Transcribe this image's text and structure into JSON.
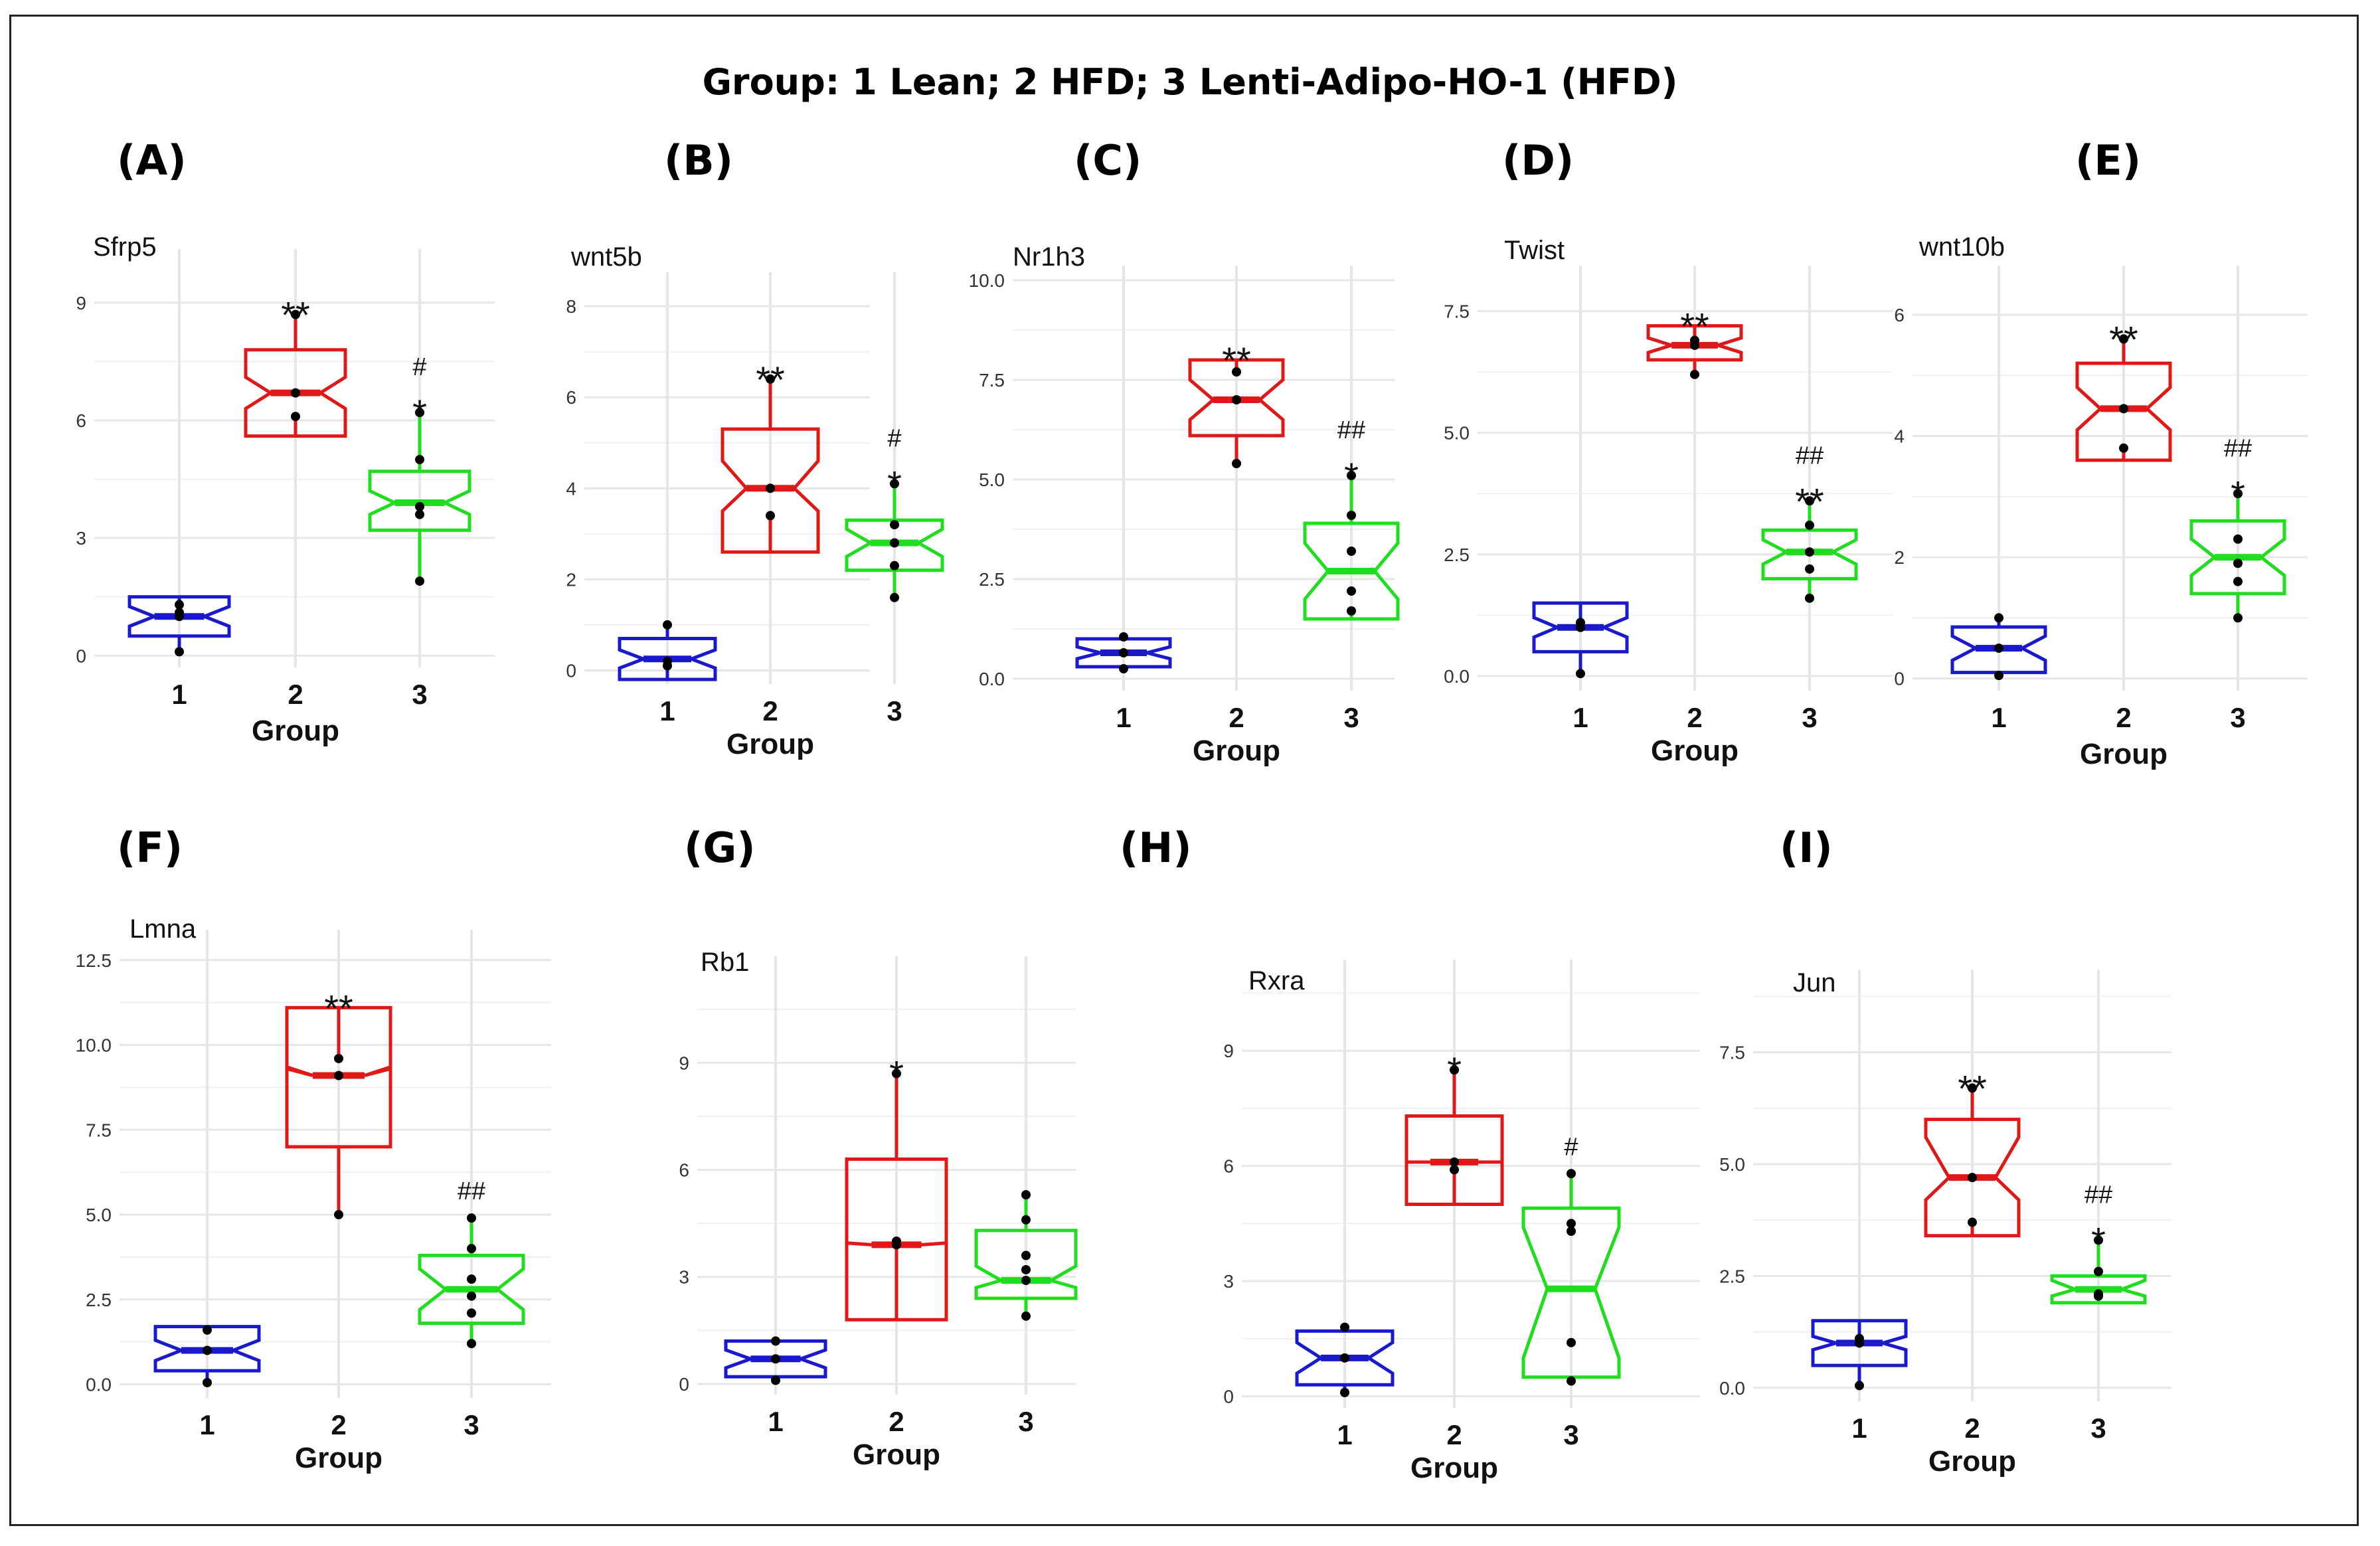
{
  "title": "Group: 1 Lean; 2 HFD; 3 Lenti-Adipo-HO-1 (HFD)",
  "colors": {
    "g1": "#1a1acc",
    "g2": "#e01818",
    "g3": "#20dd20",
    "grid": "#e6e6e6",
    "point": "#000000"
  },
  "chart_data": [
    {
      "type": "box",
      "panel": "(A)",
      "title": "Sfrp5",
      "xlabel": "Group",
      "categories": [
        "1",
        "2",
        "3"
      ],
      "ylim": [
        -0.3,
        10.2
      ],
      "yticks": [
        0,
        3,
        6,
        9
      ],
      "ytick_labels": [
        "0",
        "3",
        "6",
        "9"
      ],
      "boxes": [
        {
          "group": "1",
          "q1": 0.5,
          "median": 1.0,
          "q3": 1.5,
          "notch_lo": 0.75,
          "notch_hi": 1.25,
          "whisker_lo": 0.1,
          "whisker_hi": 1.3,
          "points": [
            0.1,
            1.0,
            1.1,
            1.3
          ]
        },
        {
          "group": "2",
          "q1": 5.6,
          "median": 6.7,
          "q3": 7.8,
          "notch_lo": 6.3,
          "notch_hi": 7.1,
          "whisker_lo": 6.1,
          "whisker_hi": 8.7,
          "points": [
            6.1,
            6.7,
            8.7
          ]
        },
        {
          "group": "3",
          "q1": 3.2,
          "median": 3.9,
          "q3": 4.7,
          "notch_lo": 3.6,
          "notch_hi": 4.2,
          "whisker_lo": 1.9,
          "whisker_hi": 6.2,
          "points": [
            1.9,
            3.6,
            3.8,
            5.0,
            6.2
          ]
        }
      ],
      "annotations": [
        {
          "group": "2",
          "text": "**"
        },
        {
          "group": "3",
          "text": "*"
        },
        {
          "group": "3",
          "text": "#"
        }
      ]
    },
    {
      "type": "box",
      "panel": "(B)",
      "title": "wnt5b",
      "xlabel": "Group",
      "categories": [
        "1",
        "2",
        "3"
      ],
      "ylim": [
        -0.3,
        8.6
      ],
      "yticks": [
        0,
        2,
        4,
        6,
        8
      ],
      "ytick_labels": [
        "0",
        "2",
        "4",
        "6",
        "8"
      ],
      "boxes": [
        {
          "group": "1",
          "q1": -0.2,
          "median": 0.25,
          "q3": 0.7,
          "notch_lo": 0.05,
          "notch_hi": 0.45,
          "whisker_lo": 0.1,
          "whisker_hi": 1.0,
          "points": [
            0.1,
            0.2,
            1.0
          ]
        },
        {
          "group": "2",
          "q1": 2.6,
          "median": 4.0,
          "q3": 5.3,
          "notch_lo": 3.5,
          "notch_hi": 4.6,
          "whisker_lo": 3.4,
          "whisker_hi": 6.4,
          "points": [
            3.4,
            4.0,
            6.4
          ]
        },
        {
          "group": "3",
          "q1": 2.2,
          "median": 2.8,
          "q3": 3.3,
          "notch_lo": 2.5,
          "notch_hi": 3.1,
          "whisker_lo": 1.6,
          "whisker_hi": 4.1,
          "points": [
            1.6,
            2.3,
            2.8,
            3.2,
            4.1
          ]
        }
      ],
      "annotations": [
        {
          "group": "2",
          "text": "**"
        },
        {
          "group": "3",
          "text": "*"
        },
        {
          "group": "3",
          "text": "#"
        }
      ]
    },
    {
      "type": "box",
      "panel": "(C)",
      "title": "Nr1h3",
      "xlabel": "Group",
      "categories": [
        "1",
        "2",
        "3"
      ],
      "ylim": [
        -0.3,
        10.2
      ],
      "yticks": [
        0,
        2.5,
        5,
        7.5,
        10
      ],
      "ytick_labels": [
        "0.0",
        "2.5",
        "5.0",
        "7.5",
        "10.0"
      ],
      "boxes": [
        {
          "group": "1",
          "q1": 0.3,
          "median": 0.65,
          "q3": 1.0,
          "notch_lo": 0.5,
          "notch_hi": 0.8,
          "whisker_lo": 0.25,
          "whisker_hi": 1.05,
          "points": [
            0.25,
            0.65,
            1.05
          ]
        },
        {
          "group": "2",
          "q1": 6.1,
          "median": 7.0,
          "q3": 8.0,
          "notch_lo": 6.5,
          "notch_hi": 7.5,
          "whisker_lo": 5.4,
          "whisker_hi": 7.7,
          "points": [
            5.4,
            7.0,
            7.7
          ]
        },
        {
          "group": "3",
          "q1": 1.5,
          "median": 2.7,
          "q3": 3.9,
          "notch_lo": 2.0,
          "notch_hi": 3.4,
          "whisker_lo": 1.7,
          "whisker_hi": 5.1,
          "points": [
            1.7,
            2.2,
            3.2,
            4.1,
            5.1
          ]
        }
      ],
      "annotations": [
        {
          "group": "2",
          "text": "**"
        },
        {
          "group": "3",
          "text": "*"
        },
        {
          "group": "3",
          "text": "##"
        }
      ]
    },
    {
      "type": "box",
      "panel": "(D)",
      "title": "Twist",
      "xlabel": "Group",
      "categories": [
        "1",
        "2",
        "3"
      ],
      "ylim": [
        -0.3,
        8.3
      ],
      "yticks": [
        0,
        2.5,
        5,
        7.5
      ],
      "ytick_labels": [
        "0.0",
        "2.5",
        "5.0",
        "7.5"
      ],
      "boxes": [
        {
          "group": "1",
          "q1": 0.5,
          "median": 1.0,
          "q3": 1.5,
          "notch_lo": 0.8,
          "notch_hi": 1.2,
          "whisker_lo": 0.05,
          "whisker_hi": 1.1,
          "points": [
            0.05,
            1.0,
            1.1
          ]
        },
        {
          "group": "2",
          "q1": 6.5,
          "median": 6.8,
          "q3": 7.2,
          "notch_lo": 6.65,
          "notch_hi": 6.95,
          "whisker_lo": 6.2,
          "whisker_hi": 6.95,
          "points": [
            6.2,
            6.8,
            6.9
          ]
        },
        {
          "group": "3",
          "q1": 2.0,
          "median": 2.55,
          "q3": 3.0,
          "notch_lo": 2.3,
          "notch_hi": 2.8,
          "whisker_lo": 1.6,
          "whisker_hi": 3.6,
          "points": [
            1.6,
            2.2,
            2.55,
            3.1,
            3.6
          ]
        }
      ],
      "annotations": [
        {
          "group": "2",
          "text": "**"
        },
        {
          "group": "3",
          "text": "**"
        },
        {
          "group": "3",
          "text": "##"
        }
      ]
    },
    {
      "type": "box",
      "panel": "(E)",
      "title": "wnt10b",
      "xlabel": "Group",
      "categories": [
        "1",
        "2",
        "3"
      ],
      "ylim": [
        -0.2,
        6.7
      ],
      "yticks": [
        0,
        2,
        4,
        6
      ],
      "ytick_labels": [
        "0",
        "2",
        "4",
        "6"
      ],
      "boxes": [
        {
          "group": "1",
          "q1": 0.1,
          "median": 0.5,
          "q3": 0.85,
          "notch_lo": 0.3,
          "notch_hi": 0.7,
          "whisker_lo": 0.05,
          "whisker_hi": 1.0,
          "points": [
            0.05,
            0.5,
            1.0
          ]
        },
        {
          "group": "2",
          "q1": 3.6,
          "median": 4.45,
          "q3": 5.2,
          "notch_lo": 4.1,
          "notch_hi": 4.8,
          "whisker_lo": 3.8,
          "whisker_hi": 5.6,
          "points": [
            3.8,
            4.45,
            5.6
          ]
        },
        {
          "group": "3",
          "q1": 1.4,
          "median": 2.0,
          "q3": 2.6,
          "notch_lo": 1.7,
          "notch_hi": 2.3,
          "whisker_lo": 1.0,
          "whisker_hi": 3.05,
          "points": [
            1.0,
            1.6,
            1.9,
            2.3,
            3.05
          ]
        }
      ],
      "annotations": [
        {
          "group": "2",
          "text": "**"
        },
        {
          "group": "3",
          "text": "*"
        },
        {
          "group": "3",
          "text": "##"
        }
      ]
    },
    {
      "type": "box",
      "panel": "(F)",
      "title": "Lmna",
      "xlabel": "Group",
      "categories": [
        "1",
        "2",
        "3"
      ],
      "ylim": [
        -0.4,
        13.2
      ],
      "yticks": [
        0,
        2.5,
        5,
        7.5,
        10,
        12.5
      ],
      "ytick_labels": [
        "0.0",
        "2.5",
        "5.0",
        "7.5",
        "10.0",
        "12.5"
      ],
      "boxes": [
        {
          "group": "1",
          "q1": 0.4,
          "median": 1.0,
          "q3": 1.7,
          "notch_lo": 0.7,
          "notch_hi": 1.3,
          "whisker_lo": 0.05,
          "whisker_hi": 1.6,
          "points": [
            0.05,
            1.0,
            1.6
          ]
        },
        {
          "group": "2",
          "q1": 7.0,
          "median": 9.1,
          "q3": 11.1,
          "notch_lo": 9.3,
          "notch_hi": 9.35,
          "whisker_lo": 5.0,
          "whisker_hi": 9.6,
          "points": [
            5.0,
            9.1,
            9.6
          ]
        },
        {
          "group": "3",
          "q1": 1.8,
          "median": 2.8,
          "q3": 3.8,
          "notch_lo": 2.2,
          "notch_hi": 3.4,
          "whisker_lo": 1.2,
          "whisker_hi": 4.9,
          "points": [
            1.2,
            2.1,
            2.6,
            3.1,
            4.0,
            4.9
          ]
        }
      ],
      "annotations": [
        {
          "group": "2",
          "text": "**"
        },
        {
          "group": "3",
          "text": "##"
        }
      ]
    },
    {
      "type": "box",
      "panel": "(G)",
      "title": "Rb1",
      "xlabel": "Group",
      "categories": [
        "1",
        "2",
        "3"
      ],
      "ylim": [
        -0.3,
        11.8
      ],
      "yticks": [
        0,
        3,
        6,
        9
      ],
      "ytick_labels": [
        "0",
        "3",
        "6",
        "9"
      ],
      "boxes": [
        {
          "group": "1",
          "q1": 0.2,
          "median": 0.7,
          "q3": 1.2,
          "notch_lo": 0.45,
          "notch_hi": 0.95,
          "whisker_lo": 0.1,
          "whisker_hi": 1.2,
          "points": [
            0.1,
            0.7,
            1.2
          ]
        },
        {
          "group": "2",
          "q1": 1.8,
          "median": 3.9,
          "q3": 6.3,
          "notch_lo": 3.95,
          "notch_hi": 3.95,
          "whisker_lo": 3.9,
          "whisker_hi": 8.7,
          "points": [
            3.9,
            4.0,
            8.7
          ]
        },
        {
          "group": "3",
          "q1": 2.4,
          "median": 2.9,
          "q3": 4.3,
          "notch_lo": 2.7,
          "notch_hi": 3.3,
          "whisker_lo": 1.9,
          "whisker_hi": 5.3,
          "points": [
            1.9,
            2.9,
            3.2,
            3.6,
            4.6,
            5.3
          ]
        }
      ],
      "annotations": [
        {
          "group": "2",
          "text": "*"
        }
      ]
    },
    {
      "type": "box",
      "panel": "(H)",
      "title": "Rxra",
      "xlabel": "Group",
      "categories": [
        "1",
        "2",
        "3"
      ],
      "ylim": [
        -0.3,
        11.2
      ],
      "yticks": [
        0,
        3,
        6,
        9
      ],
      "ytick_labels": [
        "0",
        "3",
        "6",
        "9"
      ],
      "boxes": [
        {
          "group": "1",
          "q1": 0.3,
          "median": 1.0,
          "q3": 1.7,
          "notch_lo": 0.6,
          "notch_hi": 1.4,
          "whisker_lo": 0.1,
          "whisker_hi": 1.8,
          "points": [
            0.1,
            1.0,
            1.8
          ]
        },
        {
          "group": "2",
          "q1": 5.0,
          "median": 6.1,
          "q3": 7.3,
          "notch_lo": 6.1,
          "notch_hi": 6.1,
          "whisker_lo": 5.9,
          "whisker_hi": 8.5,
          "points": [
            5.9,
            6.1,
            8.5
          ]
        },
        {
          "group": "3",
          "q1": 0.5,
          "median": 2.8,
          "q3": 4.9,
          "notch_lo": 1.0,
          "notch_hi": 4.4,
          "whisker_lo": 0.4,
          "whisker_hi": 5.8,
          "points": [
            0.4,
            1.4,
            4.3,
            4.5,
            5.8
          ]
        }
      ],
      "annotations": [
        {
          "group": "2",
          "text": "*"
        },
        {
          "group": "3",
          "text": "#"
        }
      ]
    },
    {
      "type": "box",
      "panel": "(I)",
      "title": "Jun",
      "xlabel": "Group",
      "categories": [
        "1",
        "2",
        "3"
      ],
      "ylim": [
        -0.3,
        9.2
      ],
      "yticks": [
        0,
        2.5,
        5,
        7.5
      ],
      "ytick_labels": [
        "0.0",
        "2.5",
        "5.0",
        "7.5"
      ],
      "boxes": [
        {
          "group": "1",
          "q1": 0.5,
          "median": 1.0,
          "q3": 1.5,
          "notch_lo": 0.85,
          "notch_hi": 1.15,
          "whisker_lo": 0.05,
          "whisker_hi": 1.15,
          "points": [
            0.05,
            1.0,
            1.1
          ]
        },
        {
          "group": "2",
          "q1": 3.4,
          "median": 4.7,
          "q3": 6.0,
          "notch_lo": 4.2,
          "notch_hi": 5.6,
          "whisker_lo": 3.7,
          "whisker_hi": 6.7,
          "points": [
            3.7,
            4.7,
            6.7
          ]
        },
        {
          "group": "3",
          "q1": 1.9,
          "median": 2.2,
          "q3": 2.5,
          "notch_lo": 2.05,
          "notch_hi": 2.4,
          "whisker_lo": 2.05,
          "whisker_hi": 3.3,
          "points": [
            2.05,
            2.1,
            2.6,
            3.3
          ]
        }
      ],
      "annotations": [
        {
          "group": "2",
          "text": "**"
        },
        {
          "group": "3",
          "text": "*"
        },
        {
          "group": "3",
          "text": "##"
        }
      ]
    }
  ]
}
